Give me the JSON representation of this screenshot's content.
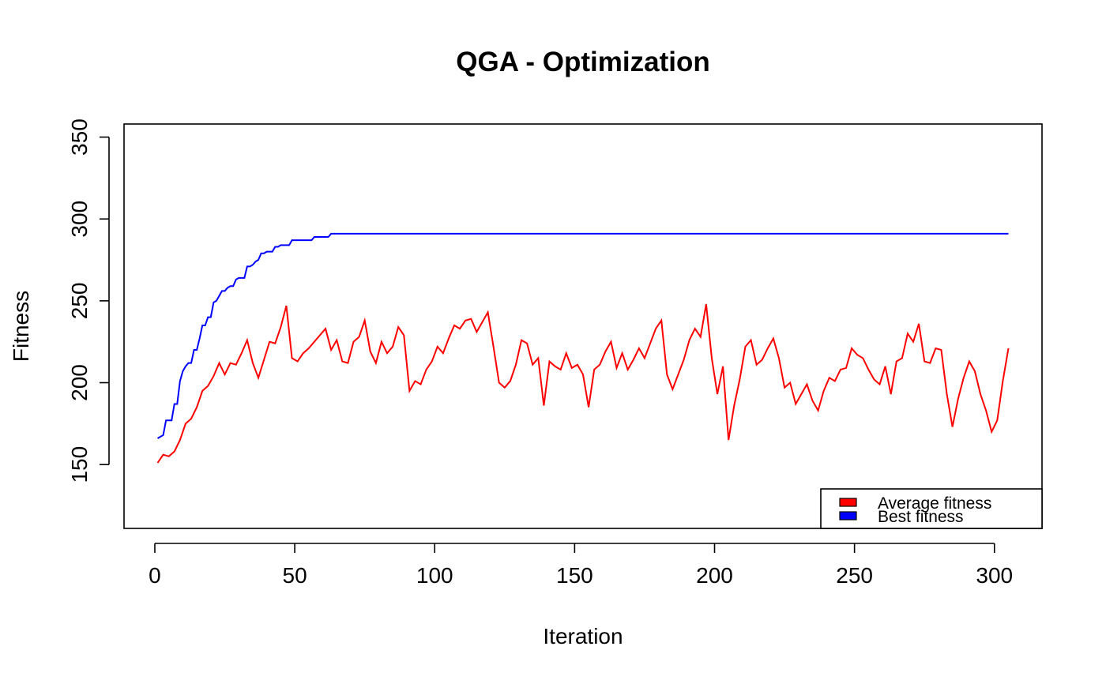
{
  "chart_data": {
    "type": "line",
    "title": "QGA - Optimization",
    "xlabel": "Iteration",
    "ylabel": "Fitness",
    "xlim": [
      -11,
      317
    ],
    "ylim": [
      111,
      358
    ],
    "x_ticks": [
      0,
      50,
      100,
      150,
      200,
      250,
      300
    ],
    "y_ticks": [
      150,
      200,
      250,
      300,
      350
    ],
    "grid": false,
    "legend_position": "bottom-right",
    "series": [
      {
        "name": "Average fitness",
        "color": "#ff0000",
        "points": [
          [
            1,
            151
          ],
          [
            3,
            156
          ],
          [
            5,
            155
          ],
          [
            7,
            158
          ],
          [
            9,
            165
          ],
          [
            11,
            175
          ],
          [
            13,
            178
          ],
          [
            15,
            185
          ],
          [
            17,
            195
          ],
          [
            19,
            198
          ],
          [
            21,
            204
          ],
          [
            23,
            212
          ],
          [
            25,
            205
          ],
          [
            27,
            212
          ],
          [
            29,
            211
          ],
          [
            31,
            218
          ],
          [
            33,
            226
          ],
          [
            35,
            212
          ],
          [
            37,
            203
          ],
          [
            39,
            214
          ],
          [
            41,
            225
          ],
          [
            43,
            224
          ],
          [
            45,
            234
          ],
          [
            47,
            247
          ],
          [
            49,
            215
          ],
          [
            51,
            213
          ],
          [
            53,
            218
          ],
          [
            55,
            221
          ],
          [
            57,
            225
          ],
          [
            59,
            229
          ],
          [
            61,
            233
          ],
          [
            63,
            220
          ],
          [
            65,
            226
          ],
          [
            67,
            213
          ],
          [
            69,
            212
          ],
          [
            71,
            225
          ],
          [
            73,
            228
          ],
          [
            75,
            238
          ],
          [
            77,
            219
          ],
          [
            79,
            212
          ],
          [
            81,
            225
          ],
          [
            83,
            218
          ],
          [
            85,
            222
          ],
          [
            87,
            234
          ],
          [
            89,
            229
          ],
          [
            91,
            195
          ],
          [
            93,
            201
          ],
          [
            95,
            199
          ],
          [
            97,
            208
          ],
          [
            99,
            213
          ],
          [
            101,
            222
          ],
          [
            103,
            218
          ],
          [
            105,
            227
          ],
          [
            107,
            235
          ],
          [
            109,
            233
          ],
          [
            111,
            238
          ],
          [
            113,
            239
          ],
          [
            115,
            231
          ],
          [
            117,
            237
          ],
          [
            119,
            243
          ],
          [
            121,
            222
          ],
          [
            123,
            200
          ],
          [
            125,
            197
          ],
          [
            127,
            201
          ],
          [
            129,
            211
          ],
          [
            131,
            226
          ],
          [
            133,
            224
          ],
          [
            135,
            211
          ],
          [
            137,
            215
          ],
          [
            139,
            186
          ],
          [
            141,
            213
          ],
          [
            143,
            210
          ],
          [
            145,
            208
          ],
          [
            147,
            218
          ],
          [
            149,
            209
          ],
          [
            151,
            211
          ],
          [
            153,
            205
          ],
          [
            155,
            185
          ],
          [
            157,
            208
          ],
          [
            159,
            211
          ],
          [
            161,
            219
          ],
          [
            163,
            225
          ],
          [
            165,
            209
          ],
          [
            167,
            218
          ],
          [
            169,
            208
          ],
          [
            171,
            214
          ],
          [
            173,
            221
          ],
          [
            175,
            215
          ],
          [
            177,
            224
          ],
          [
            179,
            233
          ],
          [
            181,
            238
          ],
          [
            183,
            205
          ],
          [
            185,
            196
          ],
          [
            187,
            205
          ],
          [
            189,
            214
          ],
          [
            191,
            226
          ],
          [
            193,
            233
          ],
          [
            195,
            228
          ],
          [
            197,
            248
          ],
          [
            199,
            215
          ],
          [
            201,
            193
          ],
          [
            203,
            210
          ],
          [
            205,
            165
          ],
          [
            207,
            186
          ],
          [
            209,
            202
          ],
          [
            211,
            222
          ],
          [
            213,
            226
          ],
          [
            215,
            211
          ],
          [
            217,
            214
          ],
          [
            219,
            221
          ],
          [
            221,
            227
          ],
          [
            223,
            215
          ],
          [
            225,
            197
          ],
          [
            227,
            200
          ],
          [
            229,
            187
          ],
          [
            231,
            193
          ],
          [
            233,
            199
          ],
          [
            235,
            189
          ],
          [
            237,
            183
          ],
          [
            239,
            195
          ],
          [
            241,
            203
          ],
          [
            243,
            201
          ],
          [
            245,
            208
          ],
          [
            247,
            209
          ],
          [
            249,
            221
          ],
          [
            251,
            217
          ],
          [
            253,
            215
          ],
          [
            255,
            208
          ],
          [
            257,
            202
          ],
          [
            259,
            199
          ],
          [
            261,
            210
          ],
          [
            263,
            193
          ],
          [
            265,
            213
          ],
          [
            267,
            215
          ],
          [
            269,
            230
          ],
          [
            271,
            225
          ],
          [
            273,
            236
          ],
          [
            275,
            213
          ],
          [
            277,
            212
          ],
          [
            279,
            221
          ],
          [
            281,
            220
          ],
          [
            283,
            193
          ],
          [
            285,
            173
          ],
          [
            287,
            190
          ],
          [
            289,
            203
          ],
          [
            291,
            213
          ],
          [
            293,
            207
          ],
          [
            295,
            193
          ],
          [
            297,
            183
          ],
          [
            299,
            170
          ],
          [
            301,
            177
          ],
          [
            303,
            201
          ],
          [
            305,
            221
          ]
        ]
      },
      {
        "name": "Best fitness",
        "color": "#0000ff",
        "points": [
          [
            1,
            166
          ],
          [
            3,
            168
          ],
          [
            4,
            177
          ],
          [
            6,
            177
          ],
          [
            7,
            187
          ],
          [
            8,
            187
          ],
          [
            9,
            201
          ],
          [
            10,
            207
          ],
          [
            11,
            210
          ],
          [
            12,
            212
          ],
          [
            13,
            212
          ],
          [
            14,
            220
          ],
          [
            15,
            220
          ],
          [
            16,
            227
          ],
          [
            17,
            235
          ],
          [
            18,
            235
          ],
          [
            19,
            240
          ],
          [
            20,
            240
          ],
          [
            21,
            249
          ],
          [
            22,
            250
          ],
          [
            23,
            253
          ],
          [
            24,
            256
          ],
          [
            25,
            256
          ],
          [
            26,
            258
          ],
          [
            27,
            259
          ],
          [
            28,
            259
          ],
          [
            29,
            263
          ],
          [
            30,
            264
          ],
          [
            31,
            264
          ],
          [
            32,
            264
          ],
          [
            33,
            271
          ],
          [
            34,
            271
          ],
          [
            35,
            272
          ],
          [
            36,
            274
          ],
          [
            37,
            275
          ],
          [
            38,
            279
          ],
          [
            39,
            279
          ],
          [
            40,
            280
          ],
          [
            42,
            280
          ],
          [
            43,
            283
          ],
          [
            44,
            283
          ],
          [
            45,
            284
          ],
          [
            48,
            284
          ],
          [
            49,
            287
          ],
          [
            53,
            287
          ],
          [
            56,
            287
          ],
          [
            57,
            289
          ],
          [
            62,
            289
          ],
          [
            63,
            291
          ],
          [
            305,
            291
          ]
        ]
      }
    ]
  }
}
